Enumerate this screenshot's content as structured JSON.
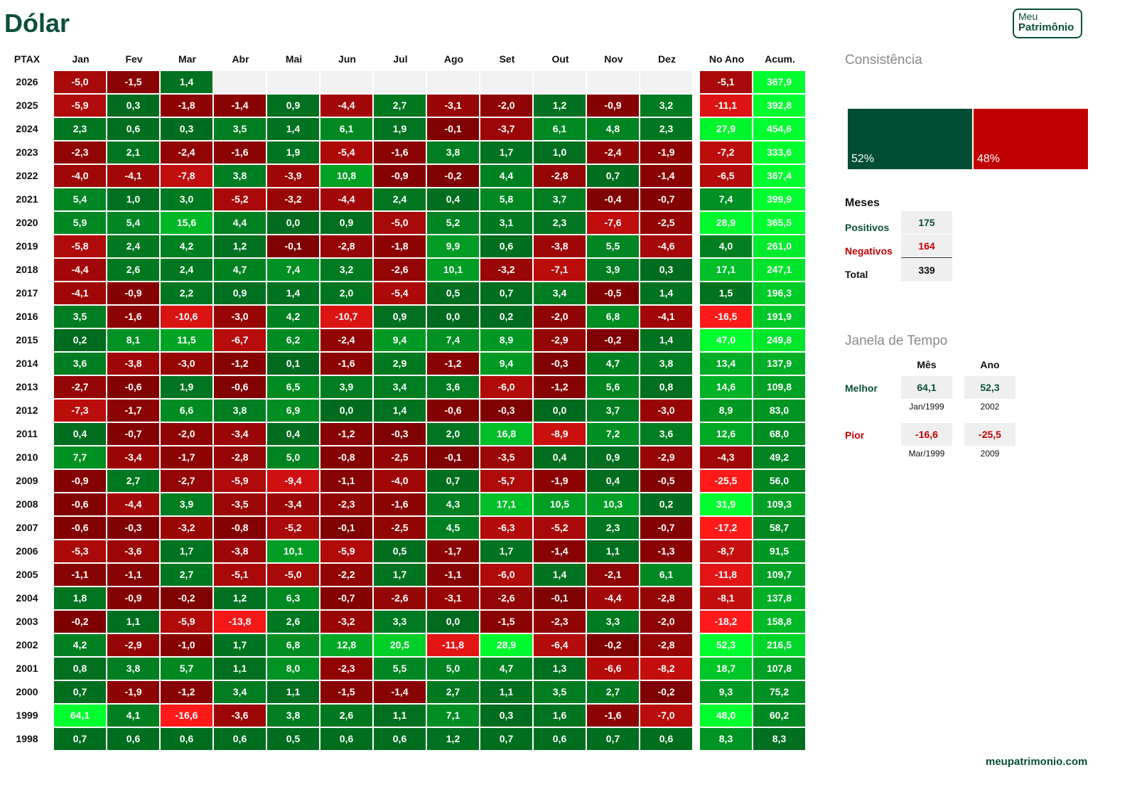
{
  "page": {
    "title": "Dólar",
    "logo": {
      "line1": "Meu",
      "line2": "Patrimônio"
    },
    "footer": "meupatrimonio.com"
  },
  "colors": {
    "positive_dark": "#006b1f",
    "positive_bright": "#00ff2e",
    "negative_dark": "#7d0000",
    "negative_bright": "#ff1a1a",
    "brand": "#0b4f3b",
    "negative_text": "#c00000",
    "empty": "#f2f2f2"
  },
  "chart_data": {
    "type": "heatmap",
    "row_header": "PTAX",
    "columns": [
      "Jan",
      "Fev",
      "Mar",
      "Abr",
      "Mai",
      "Jun",
      "Jul",
      "Ago",
      "Set",
      "Out",
      "Nov",
      "Dez"
    ],
    "summary_columns": [
      "No Ano",
      "Acum."
    ],
    "rows": [
      {
        "year": "2026",
        "months": [
          "-5,0",
          "-1,5",
          "1,4",
          "",
          "",
          "",
          "",
          "",
          "",
          "",
          "",
          ""
        ],
        "no_ano": "-5,1",
        "acum": "367,9"
      },
      {
        "year": "2025",
        "months": [
          "-5,9",
          "0,3",
          "-1,8",
          "-1,4",
          "0,9",
          "-4,4",
          "2,7",
          "-3,1",
          "-2,0",
          "1,2",
          "-0,9",
          "3,2"
        ],
        "no_ano": "-11,1",
        "acum": "392,8"
      },
      {
        "year": "2024",
        "months": [
          "2,3",
          "0,6",
          "0,3",
          "3,5",
          "1,4",
          "6,1",
          "1,9",
          "-0,1",
          "-3,7",
          "6,1",
          "4,8",
          "2,3"
        ],
        "no_ano": "27,9",
        "acum": "454,6"
      },
      {
        "year": "2023",
        "months": [
          "-2,3",
          "2,1",
          "-2,4",
          "-1,6",
          "1,9",
          "-5,4",
          "-1,6",
          "3,8",
          "1,7",
          "1,0",
          "-2,4",
          "-1,9"
        ],
        "no_ano": "-7,2",
        "acum": "333,6"
      },
      {
        "year": "2022",
        "months": [
          "-4,0",
          "-4,1",
          "-7,8",
          "3,8",
          "-3,9",
          "10,8",
          "-0,9",
          "-0,2",
          "4,4",
          "-2,8",
          "0,7",
          "-1,4"
        ],
        "no_ano": "-6,5",
        "acum": "367,4"
      },
      {
        "year": "2021",
        "months": [
          "5,4",
          "1,0",
          "3,0",
          "-5,2",
          "-3,2",
          "-4,4",
          "2,4",
          "0,4",
          "5,8",
          "3,7",
          "-0,4",
          "-0,7"
        ],
        "no_ano": "7,4",
        "acum": "399,9"
      },
      {
        "year": "2020",
        "months": [
          "5,9",
          "5,4",
          "15,6",
          "4,4",
          "0,0",
          "0,9",
          "-5,0",
          "5,2",
          "3,1",
          "2,3",
          "-7,6",
          "-2,5"
        ],
        "no_ano": "28,9",
        "acum": "365,5"
      },
      {
        "year": "2019",
        "months": [
          "-5,8",
          "2,4",
          "4,2",
          "1,2",
          "-0,1",
          "-2,8",
          "-1,8",
          "9,9",
          "0,6",
          "-3,8",
          "5,5",
          "-4,6"
        ],
        "no_ano": "4,0",
        "acum": "261,0"
      },
      {
        "year": "2018",
        "months": [
          "-4,4",
          "2,6",
          "2,4",
          "4,7",
          "7,4",
          "3,2",
          "-2,6",
          "10,1",
          "-3,2",
          "-7,1",
          "3,9",
          "0,3"
        ],
        "no_ano": "17,1",
        "acum": "247,1"
      },
      {
        "year": "2017",
        "months": [
          "-4,1",
          "-0,9",
          "2,2",
          "0,9",
          "1,4",
          "2,0",
          "-5,4",
          "0,5",
          "0,7",
          "3,4",
          "-0,5",
          "1,4"
        ],
        "no_ano": "1,5",
        "acum": "196,3"
      },
      {
        "year": "2016",
        "months": [
          "3,5",
          "-1,6",
          "-10,6",
          "-3,0",
          "4,2",
          "-10,7",
          "0,9",
          "0,0",
          "0,2",
          "-2,0",
          "6,8",
          "-4,1"
        ],
        "no_ano": "-16,5",
        "acum": "191,9"
      },
      {
        "year": "2015",
        "months": [
          "0,2",
          "8,1",
          "11,5",
          "-6,7",
          "6,2",
          "-2,4",
          "9,4",
          "7,4",
          "8,9",
          "-2,9",
          "-0,2",
          "1,4"
        ],
        "no_ano": "47,0",
        "acum": "249,8"
      },
      {
        "year": "2014",
        "months": [
          "3,6",
          "-3,8",
          "-3,0",
          "-1,2",
          "0,1",
          "-1,6",
          "2,9",
          "-1,2",
          "9,4",
          "-0,3",
          "4,7",
          "3,8"
        ],
        "no_ano": "13,4",
        "acum": "137,9"
      },
      {
        "year": "2013",
        "months": [
          "-2,7",
          "-0,6",
          "1,9",
          "-0,6",
          "6,5",
          "3,9",
          "3,4",
          "3,6",
          "-6,0",
          "-1,2",
          "5,6",
          "0,8"
        ],
        "no_ano": "14,6",
        "acum": "109,8"
      },
      {
        "year": "2012",
        "months": [
          "-7,3",
          "-1,7",
          "6,6",
          "3,8",
          "6,9",
          "0,0",
          "1,4",
          "-0,6",
          "-0,3",
          "0,0",
          "3,7",
          "-3,0"
        ],
        "no_ano": "8,9",
        "acum": "83,0"
      },
      {
        "year": "2011",
        "months": [
          "0,4",
          "-0,7",
          "-2,0",
          "-3,4",
          "0,4",
          "-1,2",
          "-0,3",
          "2,0",
          "16,8",
          "-8,9",
          "7,2",
          "3,6"
        ],
        "no_ano": "12,6",
        "acum": "68,0"
      },
      {
        "year": "2010",
        "months": [
          "7,7",
          "-3,4",
          "-1,7",
          "-2,8",
          "5,0",
          "-0,8",
          "-2,5",
          "-0,1",
          "-3,5",
          "0,4",
          "0,9",
          "-2,9"
        ],
        "no_ano": "-4,3",
        "acum": "49,2"
      },
      {
        "year": "2009",
        "months": [
          "-0,9",
          "2,7",
          "-2,7",
          "-5,9",
          "-9,4",
          "-1,1",
          "-4,0",
          "0,7",
          "-5,7",
          "-1,9",
          "0,4",
          "-0,5"
        ],
        "no_ano": "-25,5",
        "acum": "56,0"
      },
      {
        "year": "2008",
        "months": [
          "-0,6",
          "-4,4",
          "3,9",
          "-3,5",
          "-3,4",
          "-2,3",
          "-1,6",
          "4,3",
          "17,1",
          "10,5",
          "10,3",
          "0,2"
        ],
        "no_ano": "31,9",
        "acum": "109,3"
      },
      {
        "year": "2007",
        "months": [
          "-0,6",
          "-0,3",
          "-3,2",
          "-0,8",
          "-5,2",
          "-0,1",
          "-2,5",
          "4,5",
          "-6,3",
          "-5,2",
          "2,3",
          "-0,7"
        ],
        "no_ano": "-17,2",
        "acum": "58,7"
      },
      {
        "year": "2006",
        "months": [
          "-5,3",
          "-3,6",
          "1,7",
          "-3,8",
          "10,1",
          "-5,9",
          "0,5",
          "-1,7",
          "1,7",
          "-1,4",
          "1,1",
          "-1,3"
        ],
        "no_ano": "-8,7",
        "acum": "91,5"
      },
      {
        "year": "2005",
        "months": [
          "-1,1",
          "-1,1",
          "2,7",
          "-5,1",
          "-5,0",
          "-2,2",
          "1,7",
          "-1,1",
          "-6,0",
          "1,4",
          "-2,1",
          "6,1"
        ],
        "no_ano": "-11,8",
        "acum": "109,7"
      },
      {
        "year": "2004",
        "months": [
          "1,8",
          "-0,9",
          "-0,2",
          "1,2",
          "6,3",
          "-0,7",
          "-2,6",
          "-3,1",
          "-2,6",
          "-0,1",
          "-4,4",
          "-2,8"
        ],
        "no_ano": "-8,1",
        "acum": "137,8"
      },
      {
        "year": "2003",
        "months": [
          "-0,2",
          "1,1",
          "-5,9",
          "-13,8",
          "2,6",
          "-3,2",
          "3,3",
          "0,0",
          "-1,5",
          "-2,3",
          "3,3",
          "-2,0"
        ],
        "no_ano": "-18,2",
        "acum": "158,8"
      },
      {
        "year": "2002",
        "months": [
          "4,2",
          "-2,9",
          "-1,0",
          "1,7",
          "6,8",
          "12,8",
          "20,5",
          "-11,8",
          "28,9",
          "-6,4",
          "-0,2",
          "-2,8"
        ],
        "no_ano": "52,3",
        "acum": "216,5"
      },
      {
        "year": "2001",
        "months": [
          "0,8",
          "3,8",
          "5,7",
          "1,1",
          "8,0",
          "-2,3",
          "5,5",
          "5,0",
          "4,7",
          "1,3",
          "-6,6",
          "-8,2"
        ],
        "no_ano": "18,7",
        "acum": "107,8"
      },
      {
        "year": "2000",
        "months": [
          "0,7",
          "-1,9",
          "-1,2",
          "3,4",
          "1,1",
          "-1,5",
          "-1,4",
          "2,7",
          "1,1",
          "3,5",
          "2,7",
          "-0,2"
        ],
        "no_ano": "9,3",
        "acum": "75,2"
      },
      {
        "year": "1999",
        "months": [
          "64,1",
          "4,1",
          "-16,6",
          "-3,6",
          "3,8",
          "2,6",
          "1,1",
          "7,1",
          "0,3",
          "1,6",
          "-1,6",
          "-7,0"
        ],
        "no_ano": "48,0",
        "acum": "60,2"
      },
      {
        "year": "1998",
        "months": [
          "0,7",
          "0,6",
          "0,6",
          "0,6",
          "0,5",
          "0,6",
          "0,6",
          "1,2",
          "0,7",
          "0,6",
          "0,7",
          "0,6"
        ],
        "no_ano": "8,3",
        "acum": "8,3"
      }
    ]
  },
  "consistencia": {
    "title": "Consistência",
    "positive_pct": 52,
    "negative_pct": 48,
    "positive_label": "52%",
    "negative_label": "48%"
  },
  "meses": {
    "title": "Meses",
    "positivos_label": "Positivos",
    "positivos_value": "175",
    "negativos_label": "Negativos",
    "negativos_value": "164",
    "total_label": "Total",
    "total_value": "339"
  },
  "janela": {
    "title": "Janela de Tempo",
    "col_mes": "Mês",
    "col_ano": "Ano",
    "melhor_label": "Melhor",
    "melhor_mes": "64,1",
    "melhor_mes_sub": "Jan/1999",
    "melhor_ano": "52,3",
    "melhor_ano_sub": "2002",
    "pior_label": "Pior",
    "pior_mes": "-16,6",
    "pior_mes_sub": "Mar/1999",
    "pior_ano": "-25,5",
    "pior_ano_sub": "2009"
  }
}
